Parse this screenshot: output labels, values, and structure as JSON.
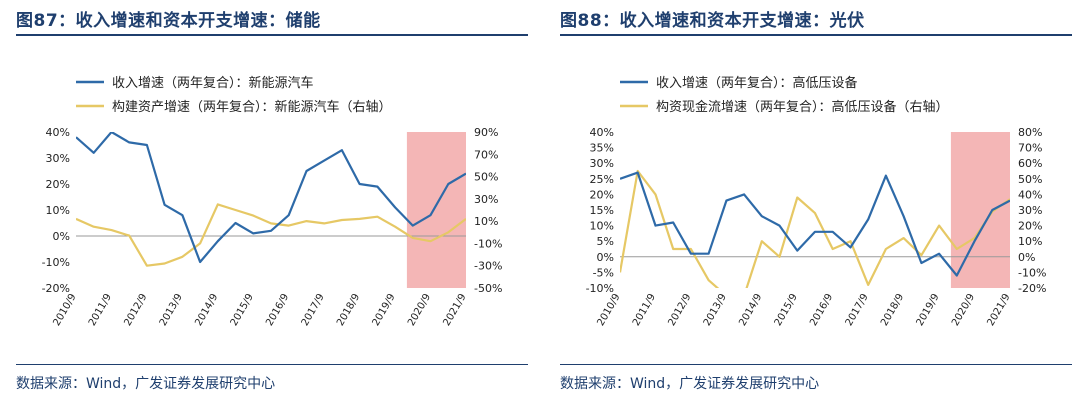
{
  "panels": [
    {
      "title": "图87：收入增速和资本开支增速：储能",
      "source": "数据来源：Wind，广发证券发展研究中心"
    },
    {
      "title": "图88：收入增速和资本开支增速：光伏",
      "source": "数据来源：Wind，广发证券发展研究中心"
    }
  ],
  "chart_data": [
    {
      "type": "line",
      "x": [
        "2010/9",
        "2011/3",
        "2011/9",
        "2012/3",
        "2012/9",
        "2013/3",
        "2013/9",
        "2014/3",
        "2014/9",
        "2015/3",
        "2015/9",
        "2016/3",
        "2016/9",
        "2017/3",
        "2017/9",
        "2018/3",
        "2018/9",
        "2019/3",
        "2019/9",
        "2020/3",
        "2020/9",
        "2021/3",
        "2021/9"
      ],
      "x_ticks": [
        "2010/9",
        "2011/9",
        "2012/9",
        "2013/9",
        "2014/9",
        "2015/9",
        "2016/9",
        "2017/9",
        "2018/9",
        "2019/9",
        "2020/9",
        "2021/9"
      ],
      "left_ticks": [
        "40%",
        "30%",
        "20%",
        "10%",
        "0%",
        "-10%",
        "-20%"
      ],
      "right_ticks": [
        "90%",
        "70%",
        "50%",
        "30%",
        "10%",
        "-10%",
        "-30%",
        "-50%"
      ],
      "ylim_left": [
        -20,
        40
      ],
      "ylim_right": [
        -50,
        90
      ],
      "shade_from": "2020/1",
      "series": [
        {
          "name": "收入增速（两年复合）：新能源汽车",
          "axis": "left",
          "color": "#2e6aa8",
          "values": [
            38,
            32,
            40,
            36,
            35,
            12,
            8,
            -10,
            -2,
            5,
            1,
            2,
            8,
            25,
            29,
            33,
            20,
            19,
            11,
            4,
            8,
            20,
            24
          ]
        },
        {
          "name": "构建资产增速（两年复合）：新能源汽车（右轴）",
          "axis": "right",
          "color": "#e6c865",
          "values": [
            12,
            5,
            2,
            -3,
            -30,
            -28,
            -22,
            -10,
            25,
            20,
            15,
            8,
            6,
            10,
            8,
            11,
            12,
            14,
            5,
            -5,
            -8,
            0,
            12
          ]
        }
      ]
    },
    {
      "type": "line",
      "x": [
        "2010/9",
        "2011/3",
        "2011/9",
        "2012/3",
        "2012/9",
        "2013/3",
        "2013/9",
        "2014/3",
        "2014/9",
        "2015/3",
        "2015/9",
        "2016/3",
        "2016/9",
        "2017/3",
        "2017/9",
        "2018/3",
        "2018/9",
        "2019/3",
        "2019/9",
        "2020/3",
        "2020/9",
        "2021/3",
        "2021/9"
      ],
      "x_ticks": [
        "2010/9",
        "2011/9",
        "2012/9",
        "2013/9",
        "2014/9",
        "2015/9",
        "2016/9",
        "2017/9",
        "2018/9",
        "2019/9",
        "2020/9",
        "2021/9"
      ],
      "left_ticks": [
        "40%",
        "35%",
        "30%",
        "25%",
        "20%",
        "15%",
        "10%",
        "5%",
        "0%",
        "-5%",
        "-10%"
      ],
      "right_ticks": [
        "80%",
        "70%",
        "60%",
        "50%",
        "40%",
        "30%",
        "20%",
        "10%",
        "0%",
        "-10%",
        "-20%"
      ],
      "ylim_left": [
        -10,
        40
      ],
      "ylim_right": [
        -20,
        80
      ],
      "shade_from": "2020/1",
      "series": [
        {
          "name": "收入增速（两年复合）：高低压设备",
          "axis": "left",
          "color": "#2e6aa8",
          "values": [
            25,
            27,
            10,
            11,
            1,
            1,
            18,
            20,
            13,
            10,
            2,
            8,
            8,
            3,
            12,
            26,
            13,
            -2,
            1,
            -6,
            5,
            15,
            18
          ]
        },
        {
          "name": "构资现金流增速（两年复合）：高低压设备（右轴）",
          "axis": "right",
          "color": "#e6c865",
          "values": [
            -10,
            55,
            40,
            5,
            5,
            -15,
            -25,
            -25,
            10,
            0,
            38,
            28,
            5,
            10,
            -18,
            5,
            12,
            1,
            20,
            5,
            12,
            29,
            37
          ]
        }
      ]
    }
  ]
}
